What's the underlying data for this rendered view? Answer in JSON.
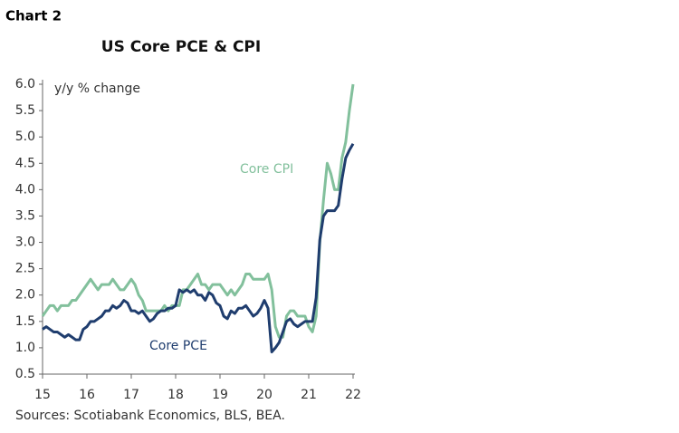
{
  "chart_data": {
    "type": "line",
    "header": "Chart 2",
    "title": "US Core PCE & CPI",
    "y_axis_label": "y/y % change",
    "source": "Sources: Scotiabank Economics, BLS, BEA.",
    "x": [
      15,
      15.083,
      15.167,
      15.25,
      15.333,
      15.417,
      15.5,
      15.583,
      15.667,
      15.75,
      15.833,
      15.917,
      16,
      16.083,
      16.167,
      16.25,
      16.333,
      16.417,
      16.5,
      16.583,
      16.667,
      16.75,
      16.833,
      16.917,
      17,
      17.083,
      17.167,
      17.25,
      17.333,
      17.417,
      17.5,
      17.583,
      17.667,
      17.75,
      17.833,
      17.917,
      18,
      18.083,
      18.167,
      18.25,
      18.333,
      18.417,
      18.5,
      18.583,
      18.667,
      18.75,
      18.833,
      18.917,
      19,
      19.083,
      19.167,
      19.25,
      19.333,
      19.417,
      19.5,
      19.583,
      19.667,
      19.75,
      19.833,
      19.917,
      20,
      20.083,
      20.167,
      20.25,
      20.333,
      20.417,
      20.5,
      20.583,
      20.667,
      20.75,
      20.833,
      20.917,
      21,
      21.083,
      21.167,
      21.25,
      21.333,
      21.417,
      21.5,
      21.583,
      21.667,
      21.75,
      21.833,
      21.917,
      22
    ],
    "series": [
      {
        "name": "Core CPI",
        "color": "#82c09c",
        "values": [
          1.6,
          1.7,
          1.8,
          1.8,
          1.7,
          1.8,
          1.8,
          1.8,
          1.9,
          1.9,
          2.0,
          2.1,
          2.2,
          2.3,
          2.2,
          2.1,
          2.2,
          2.2,
          2.2,
          2.3,
          2.2,
          2.1,
          2.1,
          2.2,
          2.3,
          2.2,
          2.0,
          1.9,
          1.7,
          1.7,
          1.7,
          1.7,
          1.7,
          1.8,
          1.7,
          1.8,
          1.8,
          1.8,
          2.1,
          2.1,
          2.2,
          2.3,
          2.4,
          2.2,
          2.2,
          2.1,
          2.2,
          2.2,
          2.2,
          2.1,
          2.0,
          2.1,
          2.0,
          2.1,
          2.2,
          2.4,
          2.4,
          2.3,
          2.3,
          2.3,
          2.3,
          2.4,
          2.1,
          1.4,
          1.2,
          1.2,
          1.6,
          1.7,
          1.7,
          1.6,
          1.6,
          1.6,
          1.4,
          1.3,
          1.6,
          3.0,
          3.8,
          4.5,
          4.3,
          4.0,
          4.0,
          4.6,
          4.9,
          5.5,
          6.0
        ]
      },
      {
        "name": "Core PCE",
        "color": "#1f3d6e",
        "values": [
          1.35,
          1.4,
          1.35,
          1.3,
          1.3,
          1.25,
          1.2,
          1.25,
          1.2,
          1.15,
          1.15,
          1.35,
          1.4,
          1.5,
          1.5,
          1.55,
          1.6,
          1.7,
          1.7,
          1.8,
          1.75,
          1.8,
          1.9,
          1.85,
          1.7,
          1.7,
          1.65,
          1.7,
          1.6,
          1.5,
          1.55,
          1.65,
          1.7,
          1.7,
          1.75,
          1.75,
          1.8,
          2.1,
          2.05,
          2.1,
          2.05,
          2.1,
          2.0,
          2.0,
          1.9,
          2.05,
          2.0,
          1.85,
          1.8,
          1.6,
          1.55,
          1.7,
          1.65,
          1.75,
          1.75,
          1.8,
          1.7,
          1.6,
          1.65,
          1.75,
          1.9,
          1.75,
          0.92,
          1.0,
          1.1,
          1.3,
          1.5,
          1.55,
          1.45,
          1.4,
          1.45,
          1.5,
          1.5,
          1.5,
          1.95,
          3.05,
          3.5,
          3.6,
          3.6,
          3.6,
          3.7,
          4.2,
          4.6,
          4.75,
          4.87
        ]
      }
    ],
    "xlim": [
      15,
      22
    ],
    "xticks": [
      15,
      16,
      17,
      18,
      19,
      20,
      21,
      22
    ],
    "ylim": [
      0.5,
      6.0
    ],
    "yticks": [
      0.5,
      {
        "value": 1.0,
        "label": "1.0"
      },
      1.5,
      {
        "value": 2.0,
        "label": "2.0"
      },
      2.5,
      {
        "value": 3.0,
        "label": "3.0"
      },
      3.5,
      {
        "value": 4.0,
        "label": "4.0"
      },
      4.5,
      {
        "value": 5.0,
        "label": "5.0"
      },
      5.5,
      {
        "value": 6.0,
        "label": "6.0"
      }
    ],
    "grid": false
  }
}
